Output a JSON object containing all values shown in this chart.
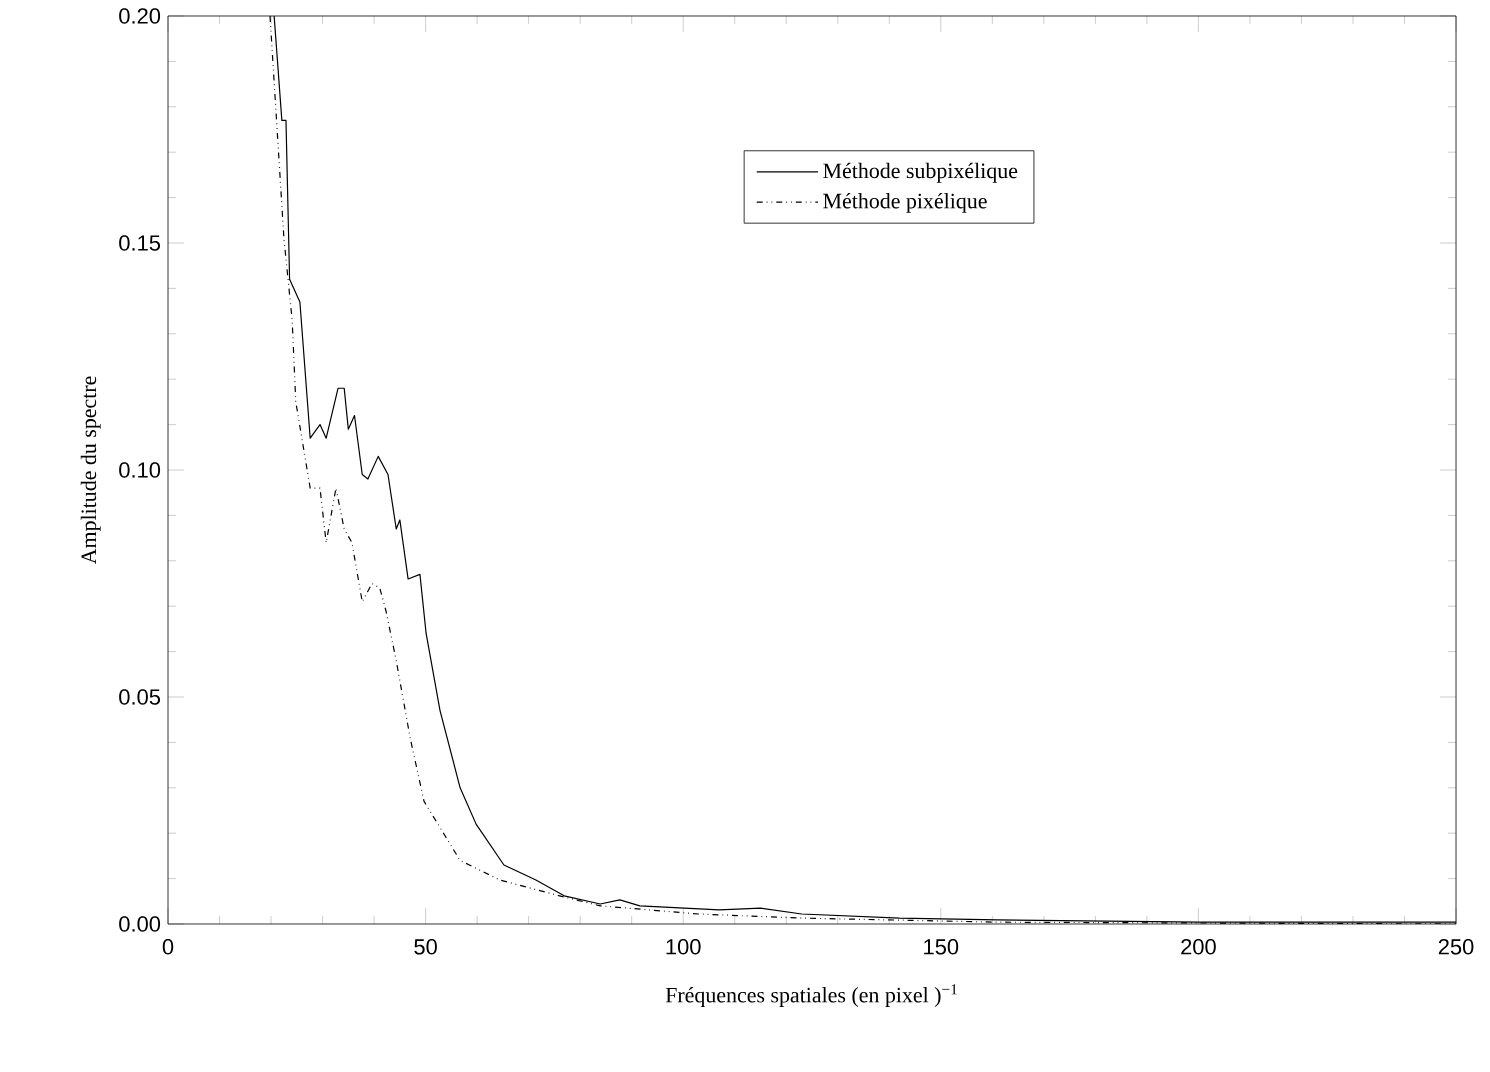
{
  "chart_data": {
    "type": "line",
    "xlabel": "Fréquences spatiales (en pixel )$^{−1}$",
    "ylabel": "Amplitude du spectre",
    "xlim": [
      0,
      250
    ],
    "ylim": [
      0,
      0.2
    ],
    "xticks": [
      0,
      50,
      100,
      150,
      200,
      250
    ],
    "yticks": [
      {
        "value": 0,
        "label": "0.00"
      },
      {
        "value": 0.05,
        "label": "0.05"
      },
      {
        "value": 0.1,
        "label": "0.10"
      },
      {
        "value": 0.15,
        "label": "0.15"
      },
      {
        "value": 0.2,
        "label": "0.20"
      }
    ],
    "grid": false,
    "legend": "top right",
    "marker": "none",
    "series": [
      {
        "name": "Méthode subpixélique",
        "color": "#000000",
        "line_style": "solid",
        "x": [
          20.6,
          22.1,
          22.9,
          23.6,
          25.6,
          27.6,
          29.5,
          30.7,
          33.0,
          34.2,
          35.0,
          36.2,
          37.7,
          38.8,
          40.8,
          42.7,
          44.3,
          45.0,
          46.6,
          48.9,
          50.1,
          52.8,
          56.7,
          59.8,
          65.2,
          71.4,
          76.9,
          83.9,
          87.7,
          91.6,
          107,
          115,
          123,
          142,
          161,
          200,
          250
        ],
        "values": [
          0.2,
          0.177,
          0.177,
          0.142,
          0.137,
          0.107,
          0.11,
          0.107,
          0.118,
          0.118,
          0.109,
          0.112,
          0.099,
          0.098,
          0.103,
          0.099,
          0.087,
          0.089,
          0.076,
          0.077,
          0.064,
          0.047,
          0.03,
          0.022,
          0.013,
          0.0097,
          0.0062,
          0.0044,
          0.0053,
          0.004,
          0.0031,
          0.0035,
          0.0022,
          0.0013,
          0.0009,
          0.0004,
          0.0004
        ]
      },
      {
        "name": "Méthode pixélique",
        "color": "#000000",
        "line_style": "dotted",
        "x": [
          19.8,
          22.5,
          24.1,
          24.8,
          27.6,
          29.5,
          30.7,
          32.6,
          34.2,
          35.7,
          37.7,
          39.6,
          41.1,
          42.3,
          44.3,
          47.0,
          49.7,
          56.7,
          64.4,
          76,
          83.9,
          103,
          123,
          161,
          250
        ],
        "values": [
          0.2,
          0.151,
          0.133,
          0.115,
          0.096,
          0.096,
          0.084,
          0.096,
          0.087,
          0.084,
          0.071,
          0.075,
          0.074,
          0.069,
          0.058,
          0.041,
          0.027,
          0.014,
          0.0097,
          0.0062,
          0.004,
          0.0022,
          0.0013,
          0.0004,
          0.0
        ]
      }
    ]
  }
}
